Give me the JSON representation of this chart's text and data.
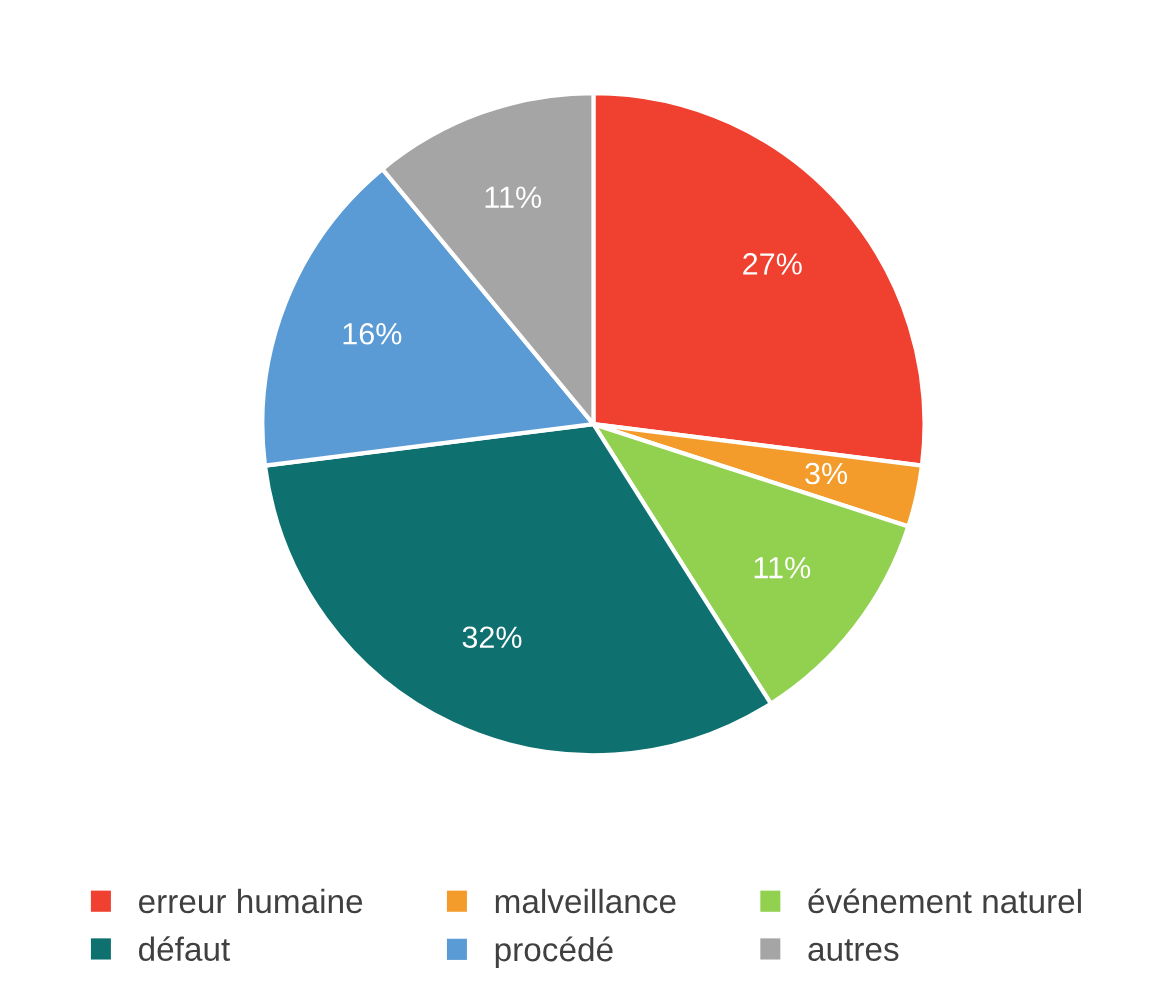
{
  "chart_data": {
    "type": "pie",
    "categories": [
      "erreur humaine",
      "malveillance",
      "événement naturel",
      "défaut",
      "procédé",
      "autres"
    ],
    "values": [
      27,
      3,
      11,
      32,
      16,
      11
    ],
    "colors": [
      "#f04030",
      "#f39c2b",
      "#92d050",
      "#0f7070",
      "#5b9bd5",
      "#a5a5a5"
    ],
    "value_labels": [
      "27%",
      "3%",
      "11%",
      "32%",
      "16%",
      "11%"
    ],
    "legend": "bottom"
  }
}
